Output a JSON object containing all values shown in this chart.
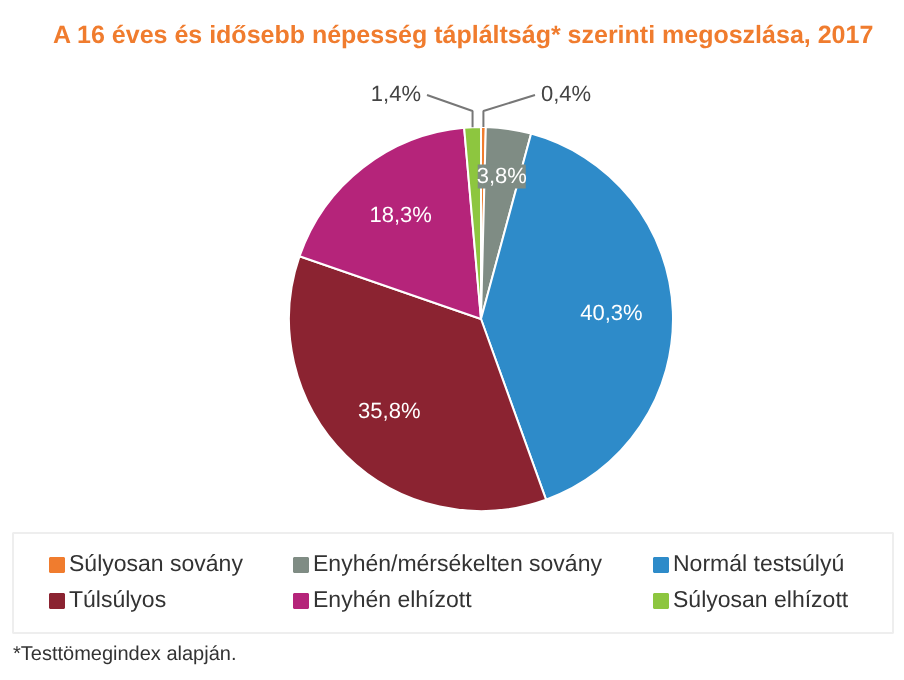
{
  "chart_data": {
    "type": "pie",
    "title": "A 16 éves és idősebb népesség tápláltság* szerinti megoszlása, 2017",
    "categories": [
      "Súlyosan sovány",
      "Enyhén/mérsékelten sovány",
      "Normál testsúlyú",
      "Túlsúlyos",
      "Enyhén elhízott",
      "Súlyosan elhízott"
    ],
    "values": [
      0.4,
      3.8,
      40.3,
      35.8,
      18.3,
      1.4
    ],
    "colors": [
      "#f07c2e",
      "#7f8c84",
      "#2e8bc9",
      "#8b2331",
      "#b5247a",
      "#8dc63f"
    ],
    "value_labels": [
      "0,4%",
      "3,8%",
      "40,3%",
      "35,8%",
      "18,3%",
      "1,4%"
    ],
    "legend": "bottom",
    "annotations": [
      "*Testtömegindex alapján."
    ]
  }
}
